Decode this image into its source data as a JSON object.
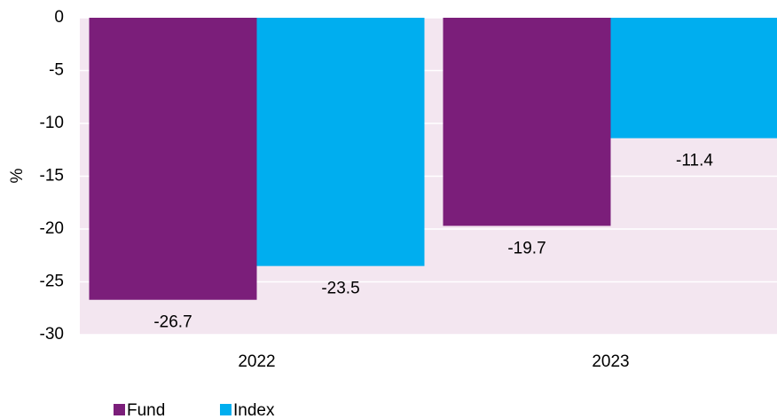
{
  "chart_data": {
    "type": "bar",
    "y_label": "%",
    "categories": [
      "2022",
      "2023"
    ],
    "series": [
      {
        "name": "Fund",
        "color": "#7b1e7a",
        "values": [
          -26.7,
          -19.7
        ]
      },
      {
        "name": "Index",
        "color": "#00aeef",
        "values": [
          -23.5,
          -11.4
        ]
      }
    ],
    "ylim": [
      -30,
      0
    ],
    "yticks": [
      0,
      -5,
      -10,
      -15,
      -20,
      -25,
      -30
    ],
    "grid": true,
    "legend": "bottom-left"
  }
}
